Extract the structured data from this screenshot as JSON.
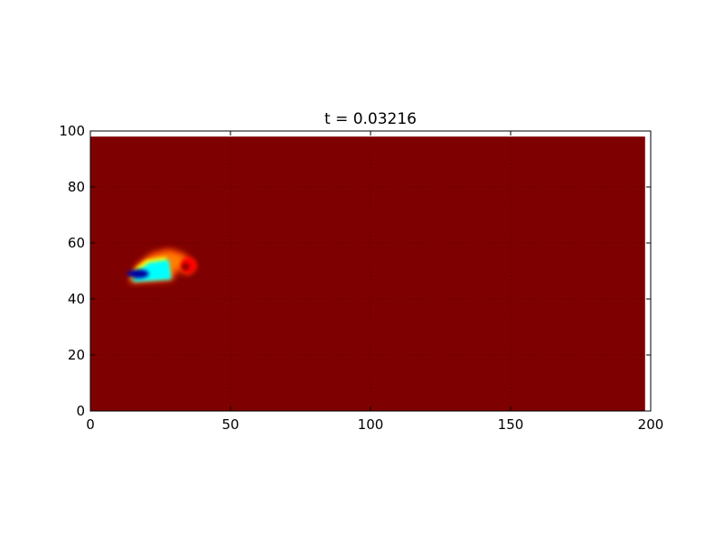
{
  "chart_data": {
    "type": "heatmap",
    "title": "t = 0.03216",
    "xlabel": "",
    "ylabel": "",
    "xlim": [
      0,
      200
    ],
    "ylim": [
      0,
      100
    ],
    "x_ticks": [
      0,
      50,
      100,
      150,
      200
    ],
    "y_ticks": [
      0,
      20,
      40,
      60,
      80,
      100
    ],
    "x_tick_labels": [
      "0",
      "50",
      "100",
      "150",
      "200"
    ],
    "y_tick_labels": [
      "0",
      "20",
      "40",
      "60",
      "80",
      "100"
    ],
    "grid": true,
    "colormap": "jet",
    "field_extent": {
      "x": [
        0,
        198
      ],
      "y": [
        0,
        98
      ]
    },
    "background_value": 1.0,
    "feature": {
      "description_visible": false,
      "shape_points": [
        [
          14,
          46
        ],
        [
          17,
          52
        ],
        [
          22,
          56
        ],
        [
          28,
          57.5
        ],
        [
          33,
          56
        ],
        [
          37,
          52
        ],
        [
          35,
          49
        ],
        [
          31,
          51
        ],
        [
          29,
          47
        ],
        [
          14,
          46
        ]
      ],
      "core_points": [
        [
          14,
          47
        ],
        [
          16,
          51
        ],
        [
          20,
          54
        ],
        [
          27,
          55
        ],
        [
          28,
          48
        ]
      ],
      "min_value": 0.1
    },
    "colors": {
      "background": "#7f0000",
      "red": "#ff0000",
      "orange": "#ff8c00",
      "yellow": "#ffff00",
      "cyan": "#00ffff",
      "deep_blue": "#0000a0"
    }
  }
}
